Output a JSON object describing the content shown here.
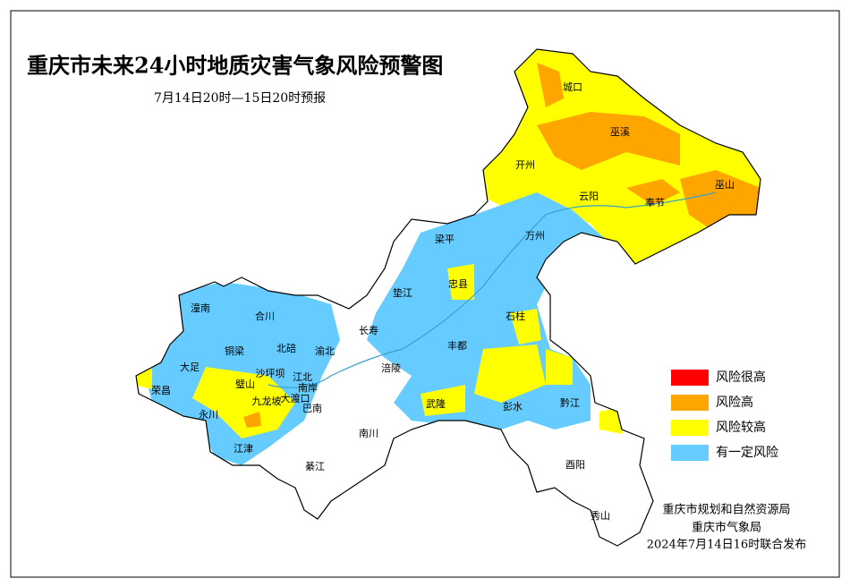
{
  "header": {
    "title": "重庆市未来24小时地质灾害气象风险预警图",
    "subtitle": "7月14日20时—15日20时预报"
  },
  "legend": {
    "items": [
      {
        "label": "风险很高",
        "color": "#ff0000"
      },
      {
        "label": "风险高",
        "color": "#ffa500"
      },
      {
        "label": "风险较高",
        "color": "#ffff00"
      },
      {
        "label": "有一定风险",
        "color": "#66ccff"
      }
    ]
  },
  "districts": [
    "城口",
    "巫溪",
    "开州",
    "云阳",
    "奉节",
    "巫山",
    "万州",
    "梁平",
    "忠县",
    "垫江",
    "石柱",
    "潼南",
    "合川",
    "长寿",
    "丰都",
    "铜梁",
    "北碚",
    "渝北",
    "大足",
    "璧山",
    "沙坪坝",
    "江北",
    "南岸",
    "涪陵",
    "荣昌",
    "九龙坡",
    "大渡口",
    "巴南",
    "武隆",
    "彭水",
    "黔江",
    "永川",
    "江津",
    "南川",
    "綦江",
    "酉阳",
    "秀山"
  ],
  "footer": {
    "lines": [
      "重庆市规划和自然资源局",
      "重庆市气象局",
      "2024年7月14日16时联合发布"
    ]
  }
}
